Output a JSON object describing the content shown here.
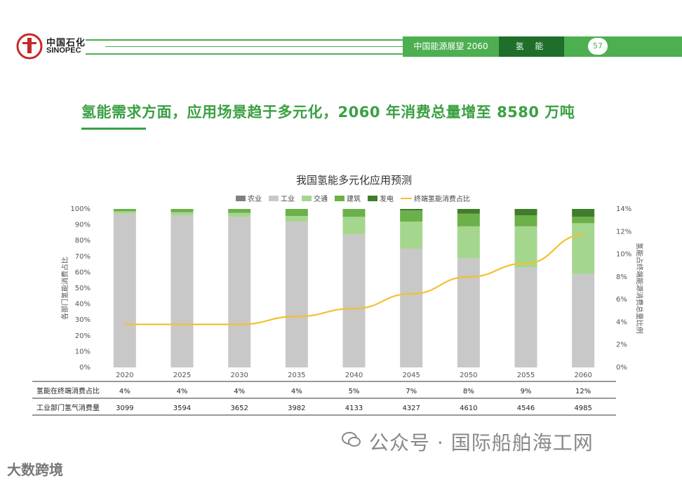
{
  "header": {
    "logo_cn": "中国石化",
    "logo_en": "SINOPEC",
    "logo_small": "SINOPEC",
    "tab_report": "中国能源展望 2060",
    "tab_section": "氢 能",
    "page_number": "57",
    "brand_color": "#4caf50",
    "brand_dark": "#1f6e2c"
  },
  "headline": "氢能需求方面，应用场景趋于多元化，2060 年消费总量增至 8580 万吨",
  "watermark": {
    "text": "公众号 · 国际船舶海工网",
    "corner_text": "大数跨境"
  },
  "chart_data": {
    "type": "bar",
    "title": "我国氢能多元化应用预测",
    "categories": [
      "2020",
      "2025",
      "2030",
      "2035",
      "2040",
      "2045",
      "2050",
      "2055",
      "2060"
    ],
    "ylabel": "各部门氢能消费占比",
    "y2label": "氢能占终端能源消费总量比例",
    "ylim": [
      0,
      100
    ],
    "y2lim": [
      0,
      14
    ],
    "yticks": [
      "0%",
      "10%",
      "20%",
      "30%",
      "40%",
      "50%",
      "60%",
      "70%",
      "80%",
      "90%",
      "100%"
    ],
    "y2ticks": [
      "0%",
      "2%",
      "4%",
      "6%",
      "8%",
      "10%",
      "12%",
      "14%"
    ],
    "legend_position": "top-center",
    "series": [
      {
        "name": "农业",
        "color": "#808080",
        "values": [
          0,
          0,
          0,
          0,
          0,
          0,
          0,
          0,
          0
        ]
      },
      {
        "name": "工业",
        "color": "#c8c8c8",
        "values": [
          97,
          96,
          95,
          92,
          84,
          75,
          69,
          63,
          59
        ]
      },
      {
        "name": "交通",
        "color": "#a5d68e",
        "values": [
          1.5,
          2,
          2.5,
          3.5,
          11,
          17,
          20,
          26,
          32
        ]
      },
      {
        "name": "建筑",
        "color": "#6cb04a",
        "values": [
          1.5,
          2,
          2.5,
          4.5,
          5,
          7,
          8,
          7,
          4
        ]
      },
      {
        "name": "发电",
        "color": "#3f7d2a",
        "values": [
          0,
          0,
          0,
          0,
          0,
          1,
          3,
          4,
          5
        ]
      }
    ],
    "line": {
      "name": "终端氢能消费占比",
      "color": "#f2c12e",
      "axis": "right",
      "values": [
        3.8,
        3.8,
        3.8,
        4.5,
        5.2,
        6.5,
        8,
        9.2,
        11.7
      ]
    },
    "table": {
      "rows": [
        {
          "label": "氢能在终端消费占比",
          "cells": [
            "4%",
            "4%",
            "4%",
            "4%",
            "5%",
            "7%",
            "8%",
            "9%",
            "12%"
          ]
        },
        {
          "label": "工业部门氢气消费量",
          "cells": [
            "3099",
            "3594",
            "3652",
            "3982",
            "4133",
            "4327",
            "4610",
            "4546",
            "4985"
          ]
        }
      ]
    }
  }
}
